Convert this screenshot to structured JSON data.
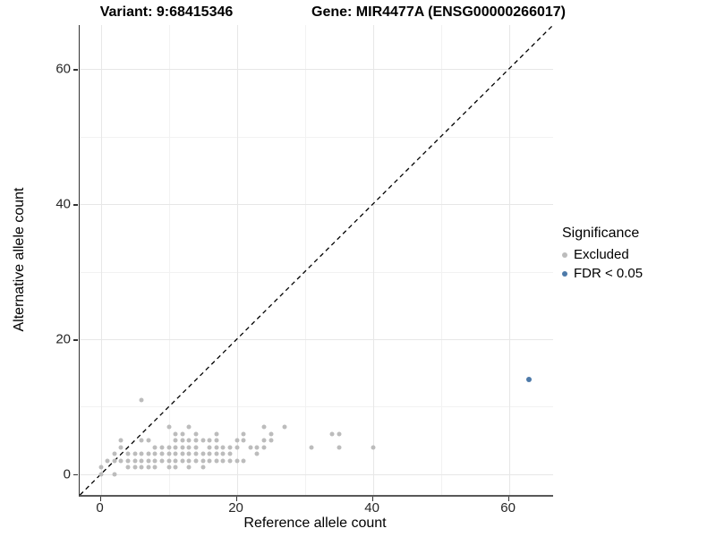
{
  "titles": {
    "variant": "Variant: 9:68415346",
    "gene": "Gene: MIR4477A (ENSG00000266017)"
  },
  "legend": {
    "title": "Significance"
  },
  "chart_data": {
    "type": "scatter",
    "x_label": "Reference allele count",
    "y_label": "Alternative allele count",
    "x_ticks": [
      0,
      20,
      40,
      60
    ],
    "y_ticks": [
      0,
      20,
      40,
      60
    ],
    "x_minor_ticks": [
      10,
      30,
      50
    ],
    "y_minor_ticks": [
      10,
      30,
      50
    ],
    "x_range": [
      -3.1,
      66.5
    ],
    "y_range": [
      -3.05,
      66.5
    ],
    "grid": "major+minor",
    "legend_position": "right",
    "identity_line": {
      "style": "dashed",
      "color": "#000000",
      "slope": 1,
      "intercept": 0
    },
    "series": [
      {
        "name": "Excluded",
        "color": "#bcbcbc",
        "marker_size": 5,
        "points": [
          [
            0,
            0
          ],
          [
            2,
            0
          ],
          [
            0,
            1
          ],
          [
            4,
            1
          ],
          [
            5,
            1
          ],
          [
            6,
            1
          ],
          [
            7,
            1
          ],
          [
            8,
            1
          ],
          [
            10,
            1
          ],
          [
            11,
            1
          ],
          [
            13,
            1
          ],
          [
            15,
            1
          ],
          [
            1,
            2
          ],
          [
            2,
            2
          ],
          [
            3,
            2
          ],
          [
            4,
            2
          ],
          [
            5,
            2
          ],
          [
            6,
            2
          ],
          [
            7,
            2
          ],
          [
            8,
            2
          ],
          [
            9,
            2
          ],
          [
            10,
            2
          ],
          [
            11,
            2
          ],
          [
            12,
            2
          ],
          [
            13,
            2
          ],
          [
            14,
            2
          ],
          [
            15,
            2
          ],
          [
            16,
            2
          ],
          [
            17,
            2
          ],
          [
            18,
            2
          ],
          [
            19,
            2
          ],
          [
            20,
            2
          ],
          [
            21,
            2
          ],
          [
            2,
            3
          ],
          [
            4,
            3
          ],
          [
            5,
            3
          ],
          [
            6,
            3
          ],
          [
            7,
            3
          ],
          [
            8,
            3
          ],
          [
            9,
            3
          ],
          [
            10,
            3
          ],
          [
            11,
            3
          ],
          [
            12,
            3
          ],
          [
            13,
            3
          ],
          [
            14,
            3
          ],
          [
            15,
            3
          ],
          [
            16,
            3
          ],
          [
            17,
            3
          ],
          [
            18,
            3
          ],
          [
            19,
            3
          ],
          [
            23,
            3
          ],
          [
            3,
            4
          ],
          [
            8,
            4
          ],
          [
            9,
            4
          ],
          [
            10,
            4
          ],
          [
            11,
            4
          ],
          [
            12,
            4
          ],
          [
            13,
            4
          ],
          [
            14,
            4
          ],
          [
            16,
            4
          ],
          [
            17,
            4
          ],
          [
            18,
            4
          ],
          [
            19,
            4
          ],
          [
            20,
            4
          ],
          [
            22,
            4
          ],
          [
            23,
            4
          ],
          [
            24,
            4
          ],
          [
            31,
            4
          ],
          [
            35,
            4
          ],
          [
            40,
            4
          ],
          [
            3,
            5
          ],
          [
            6,
            5
          ],
          [
            7,
            5
          ],
          [
            11,
            5
          ],
          [
            12,
            5
          ],
          [
            13,
            5
          ],
          [
            14,
            5
          ],
          [
            15,
            5
          ],
          [
            16,
            5
          ],
          [
            17,
            5
          ],
          [
            20,
            5
          ],
          [
            21,
            5
          ],
          [
            24,
            5
          ],
          [
            25,
            5
          ],
          [
            11,
            6
          ],
          [
            12,
            6
          ],
          [
            14,
            6
          ],
          [
            17,
            6
          ],
          [
            21,
            6
          ],
          [
            25,
            6
          ],
          [
            34,
            6
          ],
          [
            35,
            6
          ],
          [
            10,
            7
          ],
          [
            13,
            7
          ],
          [
            24,
            7
          ],
          [
            27,
            7
          ],
          [
            6,
            11
          ]
        ]
      },
      {
        "name": "FDR < 0.05",
        "color": "#4d7aa9",
        "marker_size": 6,
        "points": [
          [
            63,
            14
          ]
        ]
      }
    ]
  }
}
